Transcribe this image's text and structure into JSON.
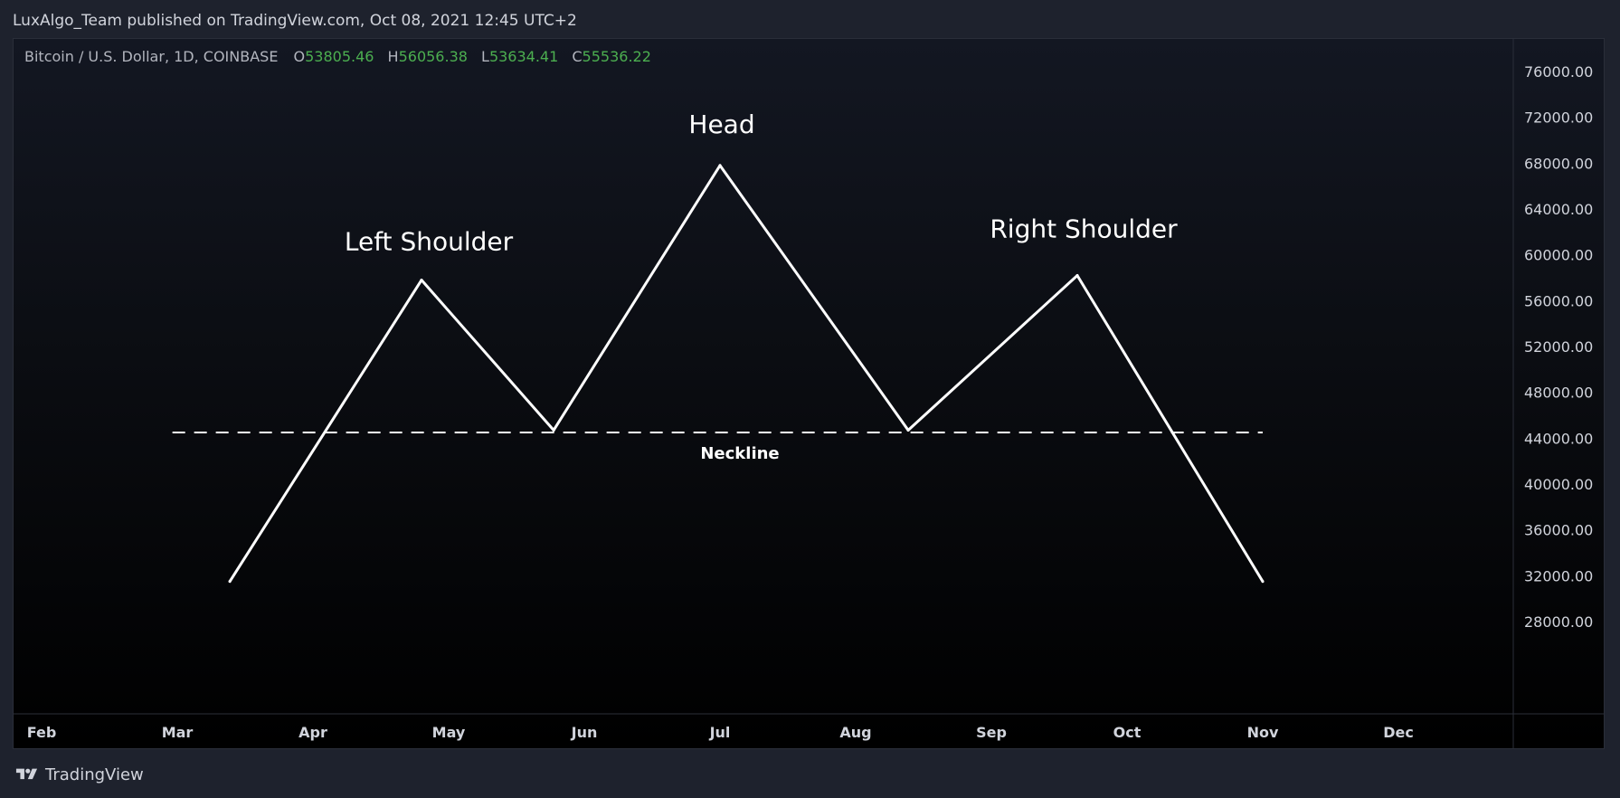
{
  "header": {
    "published_line": "LuxAlgo_Team published on TradingView.com, Oct 08, 2021 12:45 UTC+2"
  },
  "symbol": {
    "description": "Bitcoin / U.S. Dollar, 1D, COINBASE",
    "ohlc": [
      {
        "key": "O",
        "value": "53805.46"
      },
      {
        "key": "H",
        "value": "56056.38"
      },
      {
        "key": "L",
        "value": "53634.41"
      },
      {
        "key": "C",
        "value": "55536.22"
      }
    ]
  },
  "footer": {
    "brand": "TradingView"
  },
  "colors": {
    "background": "#1e222d",
    "line": "#ffffff",
    "axis_text": "#d1d4dc",
    "ohlc_value": "#4caf50"
  },
  "chart_data": {
    "type": "line",
    "title": "",
    "xlabel": "",
    "ylabel": "",
    "y_axis_side": "right",
    "ylim": [
      28000,
      76000
    ],
    "y_ticks": [
      "76000.00",
      "72000.00",
      "68000.00",
      "64000.00",
      "60000.00",
      "56000.00",
      "52000.00",
      "48000.00",
      "44000.00",
      "40000.00",
      "36000.00",
      "32000.00",
      "28000.00"
    ],
    "x_tick_labels": [
      "Feb",
      "Mar",
      "Apr",
      "May",
      "Jun",
      "Jul",
      "Aug",
      "Sep",
      "Oct",
      "Nov",
      "Dec"
    ],
    "grid": false,
    "series": [
      {
        "x": [
          "2021-03-13",
          "2021-04-25",
          "2021-05-25",
          "2021-07-01",
          "2021-08-13",
          "2021-09-20",
          "2021-11-01"
        ],
        "values": [
          31500,
          57800,
          44700,
          67800,
          44700,
          58200,
          31500
        ]
      }
    ],
    "neckline": {
      "label": "Neckline",
      "x": [
        "2021-02-28",
        "2021-11-01"
      ],
      "value": 44500,
      "style": "dashed"
    },
    "annotations": [
      {
        "text": "Left Shoulder",
        "x": "2021-04-25",
        "y": 57800
      },
      {
        "text": "Head",
        "x": "2021-07-01",
        "y": 67800
      },
      {
        "text": "Right Shoulder",
        "x": "2021-09-20",
        "y": 58200
      }
    ]
  }
}
